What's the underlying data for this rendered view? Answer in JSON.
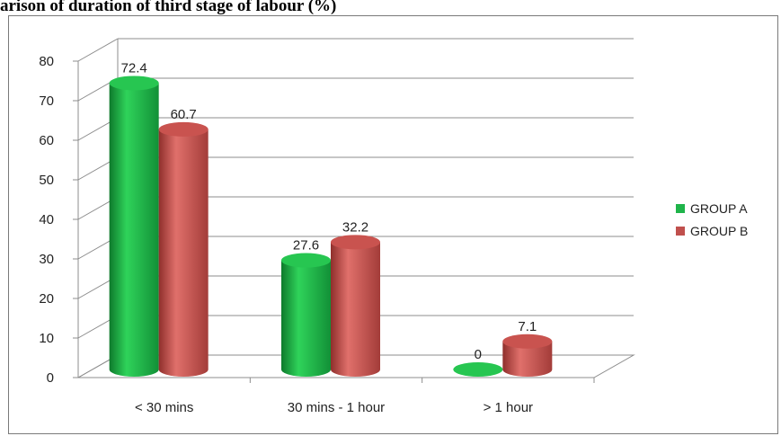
{
  "chart_data": {
    "type": "bar",
    "title": "arison of duration of third stage of labour (%)",
    "categories": [
      "< 30 mins",
      "30 mins - 1 hour",
      "> 1 hour"
    ],
    "series": [
      {
        "name": "GROUP A",
        "values": [
          72.4,
          27.6,
          0
        ],
        "color": "#1fb44a"
      },
      {
        "name": "GROUP B",
        "values": [
          60.7,
          32.2,
          7.1
        ],
        "color": "#c0504d"
      }
    ],
    "y_ticks": [
      "0",
      "10",
      "20",
      "30",
      "40",
      "50",
      "60",
      "70",
      "80"
    ],
    "ylim": [
      0,
      80
    ],
    "grid": true,
    "legend_position": "right"
  }
}
